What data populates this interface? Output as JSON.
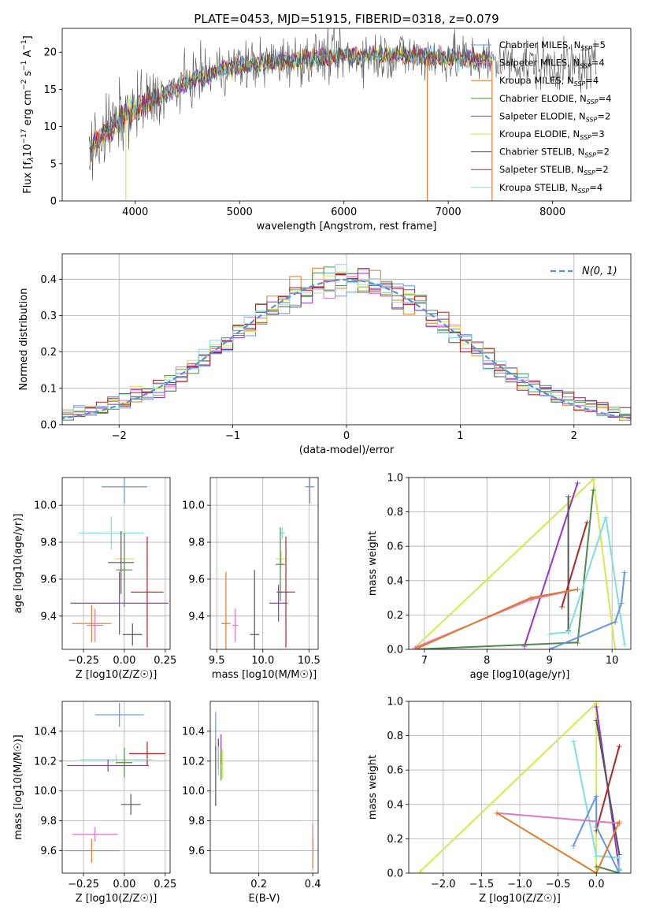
{
  "figure_title": "PLATE=0453, MJD=51915, FIBERID=0318, z=0.079",
  "legend_models": [
    {
      "name": "Chabrier MILES",
      "nssp": "5",
      "color": "#6495ed"
    },
    {
      "name": "Salpeter MILES",
      "nssp": "4",
      "color": "#e377c2"
    },
    {
      "name": "Kroupa MILES",
      "nssp": "4",
      "color": "#e07b28"
    },
    {
      "name": "Chabrier ELODIE",
      "nssp": "4",
      "color": "#4e8a4e"
    },
    {
      "name": "Salpeter ELODIE",
      "nssp": "2",
      "color": "#9932cc"
    },
    {
      "name": "Kroupa ELODIE",
      "nssp": "3",
      "color": "#d4e94b"
    },
    {
      "name": "Chabrier STELIB",
      "nssp": "2",
      "color": "#555555"
    },
    {
      "name": "Salpeter STELIB",
      "nssp": "2",
      "color": "#b22222"
    },
    {
      "name": "Kroupa STELIB",
      "nssp": "4",
      "color": "#80dede"
    }
  ],
  "chart_data": [
    {
      "id": "spectrum",
      "type": "line",
      "xlabel": "wavelength [Angstrom, rest frame]",
      "ylabel": "Flux [f_λ 10^-17 erg cm^-2 s^-1 A^-1]",
      "xlim": [
        3300,
        8750
      ],
      "ylim": [
        0,
        23.2
      ],
      "xticks": [
        4000,
        5000,
        6000,
        7000,
        8000
      ],
      "yticks": [
        0,
        5,
        10,
        15,
        20
      ],
      "observed_range": [
        3560,
        8420
      ],
      "continuum_points": [
        [
          3560,
          7
        ],
        [
          3700,
          9
        ],
        [
          3900,
          11.5
        ],
        [
          4100,
          13
        ],
        [
          4300,
          14.5
        ],
        [
          4500,
          16
        ],
        [
          4800,
          17.5
        ],
        [
          5000,
          18.2
        ],
        [
          5500,
          19
        ],
        [
          6000,
          19.5
        ],
        [
          6500,
          19.6
        ],
        [
          7000,
          19.3
        ],
        [
          7500,
          18.8
        ],
        [
          8000,
          18.2
        ],
        [
          8420,
          17.8
        ]
      ]
    },
    {
      "id": "residual_histogram",
      "type": "line",
      "xlabel": "(data-model)/error",
      "ylabel": "Normed distribution",
      "xlim": [
        -2.5,
        2.5
      ],
      "ylim": [
        0,
        0.47
      ],
      "xticks": [
        -2,
        -1,
        0,
        1,
        2
      ],
      "yticks": [
        0,
        0.1,
        0.2,
        0.3,
        0.4
      ],
      "reference_label": "N(0, 1)",
      "reference_color": "#5b8fd6"
    },
    {
      "id": "age_vs_Z",
      "type": "scatter",
      "xlabel": "Z [log10(Z/Z☉)]",
      "ylabel": "age [log10(age/yr)]",
      "xlim": [
        -0.38,
        0.28
      ],
      "ylim": [
        9.22,
        10.15
      ],
      "xticks": [
        -0.25,
        0.0,
        0.25
      ],
      "yticks": [
        9.4,
        9.6,
        9.8,
        10.0
      ],
      "points": [
        {
          "color": "#6495ed",
          "x": 0.0,
          "y": 10.1,
          "xerr": 0.14,
          "yerr": 0.09
        },
        {
          "color": "#80dede",
          "x": -0.08,
          "y": 9.85,
          "xerr": 0.2,
          "yerr": 0.09
        },
        {
          "color": "#d4e94b",
          "x": 0.0,
          "y": 9.71,
          "xerr": 0.06,
          "yerr": 0.15
        },
        {
          "color": "#555555",
          "x": -0.02,
          "y": 9.69,
          "xerr": 0.08,
          "yerr": 0.17
        },
        {
          "color": "#4e8a4e",
          "x": 0.0,
          "y": 9.65,
          "xerr": 0.05,
          "yerr": 0.2
        },
        {
          "color": "#b22222",
          "x": 0.14,
          "y": 9.53,
          "xerr": 0.1,
          "yerr": 0.3
        },
        {
          "color": "#9932cc",
          "x": -0.03,
          "y": 9.47,
          "xerr": 0.3,
          "yerr": 0.17
        },
        {
          "color": "#e07b28",
          "x": -0.2,
          "y": 9.36,
          "xerr": 0.12,
          "yerr": 0.1
        },
        {
          "color": "#e377c2",
          "x": -0.18,
          "y": 9.35,
          "xerr": 0.05,
          "yerr": 0.09
        },
        {
          "color": "#555555",
          "x": 0.05,
          "y": 9.3,
          "xerr": 0.06,
          "yerr": 0.06
        }
      ]
    },
    {
      "id": "age_vs_mass",
      "type": "scatter",
      "xlabel": "mass [log10(M/M☉)]",
      "xlim": [
        9.43,
        10.6
      ],
      "ylim": [
        9.22,
        10.15
      ],
      "xticks": [
        9.5,
        10.0,
        10.5
      ],
      "yticks": [
        9.4,
        9.6,
        9.8,
        10.0
      ],
      "points": [
        {
          "color": "#6495ed",
          "x": 10.51,
          "y": 10.1,
          "xerr": 0.05,
          "yerr": 0.09
        },
        {
          "color": "#80dede",
          "x": 10.21,
          "y": 9.85,
          "xerr": 0.03,
          "yerr": 0.03
        },
        {
          "color": "#d4e94b",
          "x": 10.2,
          "y": 9.71,
          "xerr": 0.06,
          "yerr": 0.04
        },
        {
          "color": "#4e8a4e",
          "x": 10.19,
          "y": 9.68,
          "xerr": 0.05,
          "yerr": 0.2
        },
        {
          "color": "#b22222",
          "x": 10.25,
          "y": 9.53,
          "xerr": 0.1,
          "yerr": 0.3
        },
        {
          "color": "#9932cc",
          "x": 10.17,
          "y": 9.47,
          "xerr": 0.1,
          "yerr": 0.1
        },
        {
          "color": "#555555",
          "x": 9.91,
          "y": 9.3,
          "xerr": 0.05,
          "yerr": 0.35
        },
        {
          "color": "#e07b28",
          "x": 9.6,
          "y": 9.36,
          "xerr": 0.05,
          "yerr": 0.28
        },
        {
          "color": "#e377c2",
          "x": 9.7,
          "y": 9.35,
          "xerr": 0.03,
          "yerr": 0.09
        }
      ]
    },
    {
      "id": "weight_vs_age",
      "type": "line",
      "xlabel": "age [log10(age/yr)]",
      "ylabel": "mass weight",
      "xlim": [
        6.75,
        10.3
      ],
      "ylim": [
        0,
        1
      ],
      "xticks": [
        7,
        8,
        9,
        10
      ],
      "yticks": [
        0,
        0.2,
        0.4,
        0.6,
        0.8,
        1.0
      ],
      "series": [
        {
          "color": "#d4e94b",
          "points": [
            [
              6.85,
              0.01
            ],
            [
              9.7,
              0.99
            ],
            [
              10.05,
              0.0
            ]
          ]
        },
        {
          "color": "#9932cc",
          "points": [
            [
              8.6,
              0.02
            ],
            [
              9.45,
              0.97
            ]
          ]
        },
        {
          "color": "#555555",
          "points": [
            [
              9.3,
              0.11
            ],
            [
              9.3,
              0.89
            ]
          ]
        },
        {
          "color": "#b22222",
          "points": [
            [
              9.2,
              0.25
            ],
            [
              9.6,
              0.74
            ]
          ]
        },
        {
          "color": "#4e8a4e",
          "points": [
            [
              6.85,
              0.0
            ],
            [
              9.45,
              0.04
            ],
            [
              9.7,
              0.93
            ]
          ]
        },
        {
          "color": "#80dede",
          "points": [
            [
              9.0,
              0.09
            ],
            [
              9.3,
              0.1
            ],
            [
              9.9,
              0.77
            ],
            [
              10.2,
              0.03
            ]
          ]
        },
        {
          "color": "#6495ed",
          "points": [
            [
              9.0,
              0.0
            ],
            [
              10.05,
              0.16
            ],
            [
              10.15,
              0.27
            ],
            [
              10.2,
              0.45
            ]
          ]
        },
        {
          "color": "#e377c2",
          "points": [
            [
              6.85,
              0.01
            ],
            [
              8.7,
              0.29
            ],
            [
              9.45,
              0.35
            ]
          ]
        },
        {
          "color": "#e07b28",
          "points": [
            [
              6.85,
              0.0
            ],
            [
              8.7,
              0.3
            ],
            [
              9.45,
              0.35
            ]
          ]
        }
      ]
    },
    {
      "id": "mass_vs_Z",
      "type": "scatter",
      "xlabel": "Z [log10(Z/Z☉)]",
      "ylabel": "mass [log10(M/M☉)]",
      "xlim": [
        -0.38,
        0.28
      ],
      "ylim": [
        9.45,
        10.6
      ],
      "xticks": [
        -0.25,
        0.0,
        0.25
      ],
      "yticks": [
        9.6,
        9.8,
        10.0,
        10.2,
        10.4
      ],
      "points": [
        {
          "color": "#6495ed",
          "x": -0.03,
          "y": 10.51,
          "xerr": 0.15,
          "yerr": 0.08
        },
        {
          "color": "#b22222",
          "x": 0.14,
          "y": 10.25,
          "xerr": 0.11,
          "yerr": 0.08
        },
        {
          "color": "#80dede",
          "x": -0.05,
          "y": 10.21,
          "xerr": 0.22,
          "yerr": 0.03
        },
        {
          "color": "#d4e94b",
          "x": 0.0,
          "y": 10.2,
          "xerr": 0.06,
          "yerr": 0.1
        },
        {
          "color": "#4e8a4e",
          "x": 0.0,
          "y": 10.19,
          "xerr": 0.05,
          "yerr": 0.1
        },
        {
          "color": "#9932cc",
          "x": -0.1,
          "y": 10.17,
          "xerr": 0.25,
          "yerr": 0.04
        },
        {
          "color": "#555555",
          "x": 0.04,
          "y": 9.91,
          "xerr": 0.06,
          "yerr": 0.07
        },
        {
          "color": "#e377c2",
          "x": -0.18,
          "y": 9.71,
          "xerr": 0.14,
          "yerr": 0.05
        },
        {
          "color": "#e07b28",
          "x": -0.2,
          "y": 9.6,
          "xerr": 0.17,
          "yerr": 0.08
        }
      ]
    },
    {
      "id": "mass_vs_EBV",
      "type": "scatter",
      "xlabel": "E(B-V)",
      "xlim": [
        0.02,
        0.42
      ],
      "ylim": [
        9.45,
        10.6
      ],
      "xticks": [
        0.2,
        0.4
      ],
      "yticks": [
        9.6,
        9.8,
        10.0,
        10.2,
        10.4
      ],
      "points": [
        {
          "color": "#6495ed",
          "x": 0.04,
          "y": 10.4,
          "xerr": 0.0,
          "yerr": 0.13
        },
        {
          "color": "#9932cc",
          "x": 0.06,
          "y": 10.28,
          "xerr": 0.0,
          "yerr": 0.1
        },
        {
          "color": "#555555",
          "x": 0.04,
          "y": 10.1,
          "xerr": 0.0,
          "yerr": 0.2
        },
        {
          "color": "#b22222",
          "x": 0.05,
          "y": 10.25,
          "xerr": 0.0,
          "yerr": 0.1
        },
        {
          "color": "#80dede",
          "x": 0.05,
          "y": 10.2,
          "xerr": 0.0,
          "yerr": 0.1
        },
        {
          "color": "#d4e94b",
          "x": 0.065,
          "y": 10.18,
          "xerr": 0.0,
          "yerr": 0.1
        },
        {
          "color": "#4e8a4e",
          "x": 0.06,
          "y": 10.17,
          "xerr": 0.0,
          "yerr": 0.1
        },
        {
          "color": "#e377c2",
          "x": 0.4,
          "y": 9.68,
          "xerr": 0.0,
          "yerr": 0.1
        },
        {
          "color": "#e07b28",
          "x": 0.4,
          "y": 9.58,
          "xerr": 0.0,
          "yerr": 0.1
        }
      ]
    },
    {
      "id": "weight_vs_Z",
      "type": "line",
      "xlabel": "Z [log10(Z/Z☉)]",
      "ylabel": "mass weight",
      "xlim": [
        -2.45,
        0.45
      ],
      "ylim": [
        0,
        1
      ],
      "xticks": [
        -2.0,
        -1.5,
        -1.0,
        -0.5,
        0.0
      ],
      "yticks": [
        0,
        0.2,
        0.4,
        0.6,
        0.8,
        1.0
      ],
      "series": [
        {
          "color": "#d4e94b",
          "points": [
            [
              -2.3,
              0.01
            ],
            [
              0.0,
              0.99
            ],
            [
              0.0,
              0.0
            ]
          ]
        },
        {
          "color": "#9932cc",
          "points": [
            [
              0.0,
              0.97
            ],
            [
              0.3,
              0.02
            ]
          ]
        },
        {
          "color": "#555555",
          "points": [
            [
              0.0,
              0.89
            ],
            [
              0.3,
              0.11
            ]
          ]
        },
        {
          "color": "#b22222",
          "points": [
            [
              0.0,
              0.25
            ],
            [
              0.3,
              0.74
            ]
          ]
        },
        {
          "color": "#4e8a4e",
          "points": [
            [
              0.0,
              0.04
            ],
            [
              0.3,
              0.0
            ]
          ]
        },
        {
          "color": "#80dede",
          "points": [
            [
              -0.3,
              0.77
            ],
            [
              0.0,
              0.1
            ],
            [
              0.3,
              0.09
            ],
            [
              0.3,
              0.03
            ]
          ]
        },
        {
          "color": "#6495ed",
          "points": [
            [
              -0.3,
              0.16
            ],
            [
              0.0,
              0.45
            ],
            [
              0.0,
              0.27
            ],
            [
              0.3,
              0.0
            ]
          ]
        },
        {
          "color": "#e377c2",
          "points": [
            [
              -1.3,
              0.35
            ],
            [
              0.3,
              0.29
            ]
          ]
        },
        {
          "color": "#e07b28",
          "points": [
            [
              -1.3,
              0.35
            ],
            [
              0.0,
              0.0
            ],
            [
              0.3,
              0.3
            ]
          ]
        }
      ]
    }
  ]
}
